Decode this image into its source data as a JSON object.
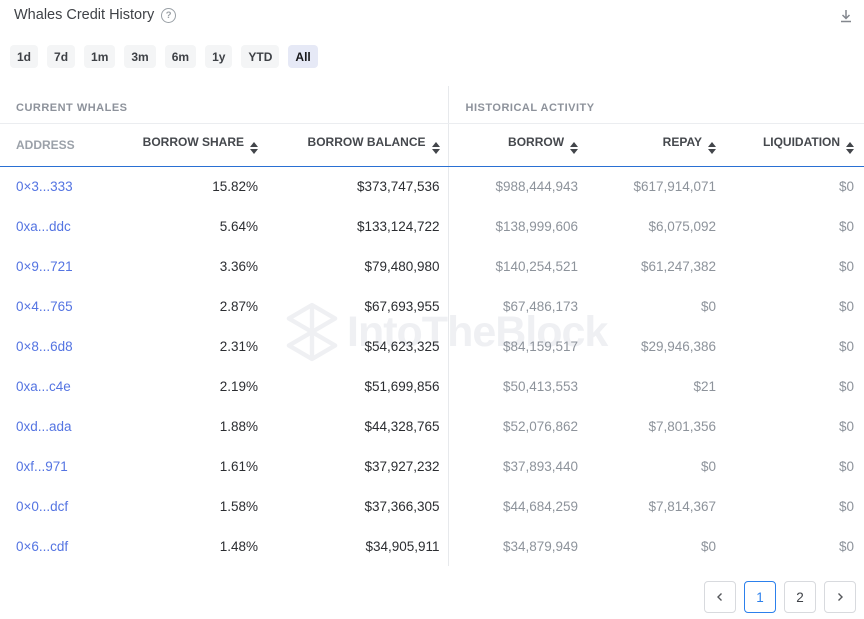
{
  "header": {
    "title": "Whales Credit History",
    "help_glyph": "?"
  },
  "time_filters": {
    "options": [
      "1d",
      "7d",
      "1m",
      "3m",
      "6m",
      "1y",
      "YTD",
      "All"
    ],
    "active": "All"
  },
  "table": {
    "groups": [
      {
        "label": "CURRENT WHALES"
      },
      {
        "label": "HISTORICAL ACTIVITY"
      }
    ],
    "columns": [
      {
        "label": "ADDRESS",
        "sortable": false
      },
      {
        "label": "BORROW SHARE",
        "sortable": true
      },
      {
        "label": "BORROW BALANCE",
        "sortable": true
      },
      {
        "label": "BORROW",
        "sortable": true
      },
      {
        "label": "REPAY",
        "sortable": true
      },
      {
        "label": "LIQUIDATION",
        "sortable": true
      }
    ],
    "rows": [
      {
        "address": "0×3...333",
        "borrow_share": "15.82%",
        "borrow_balance": "$373,747,536",
        "borrow": "$988,444,943",
        "repay": "$617,914,071",
        "liquidation": "$0"
      },
      {
        "address": "0xa...ddc",
        "borrow_share": "5.64%",
        "borrow_balance": "$133,124,722",
        "borrow": "$138,999,606",
        "repay": "$6,075,092",
        "liquidation": "$0"
      },
      {
        "address": "0×9...721",
        "borrow_share": "3.36%",
        "borrow_balance": "$79,480,980",
        "borrow": "$140,254,521",
        "repay": "$61,247,382",
        "liquidation": "$0"
      },
      {
        "address": "0×4...765",
        "borrow_share": "2.87%",
        "borrow_balance": "$67,693,955",
        "borrow": "$67,486,173",
        "repay": "$0",
        "liquidation": "$0"
      },
      {
        "address": "0×8...6d8",
        "borrow_share": "2.31%",
        "borrow_balance": "$54,623,325",
        "borrow": "$84,159,517",
        "repay": "$29,946,386",
        "liquidation": "$0"
      },
      {
        "address": "0xa...c4e",
        "borrow_share": "2.19%",
        "borrow_balance": "$51,699,856",
        "borrow": "$50,413,553",
        "repay": "$21",
        "liquidation": "$0"
      },
      {
        "address": "0xd...ada",
        "borrow_share": "1.88%",
        "borrow_balance": "$44,328,765",
        "borrow": "$52,076,862",
        "repay": "$7,801,356",
        "liquidation": "$0"
      },
      {
        "address": "0xf...971",
        "borrow_share": "1.61%",
        "borrow_balance": "$37,927,232",
        "borrow": "$37,893,440",
        "repay": "$0",
        "liquidation": "$0"
      },
      {
        "address": "0×0...dcf",
        "borrow_share": "1.58%",
        "borrow_balance": "$37,366,305",
        "borrow": "$44,684,259",
        "repay": "$7,814,367",
        "liquidation": "$0"
      },
      {
        "address": "0×6...cdf",
        "borrow_share": "1.48%",
        "borrow_balance": "$34,905,911",
        "borrow": "$34,879,949",
        "repay": "$0",
        "liquidation": "$0"
      }
    ]
  },
  "watermark": {
    "text": "IntoTheBlock"
  },
  "pagination": {
    "pages": [
      "1",
      "2"
    ],
    "active_page": "1"
  },
  "colors": {
    "header_underline_blue": "#2a70d3",
    "address_link_blue": "#5474e2",
    "active_page_blue": "#2c80ec",
    "active_filter_bg": "#e6e9f6",
    "filter_bg": "#f4f5f6",
    "dark_value": "#2b2d31",
    "gray_value": "#8d939b",
    "watermark_gray": "#eff0f3"
  }
}
